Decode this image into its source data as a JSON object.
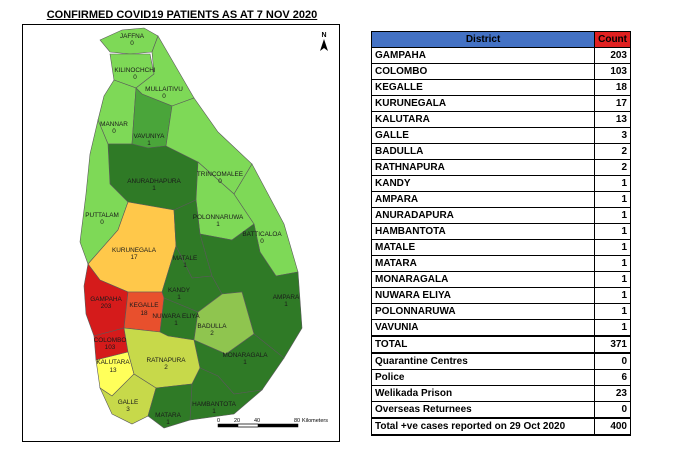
{
  "title": "CONFIRMED COVID19 PATIENTS AS AT 7 NOV 2020",
  "north_arrow": "N",
  "scale": {
    "ticks": [
      "0",
      "10",
      "20",
      "40",
      "60",
      "80"
    ],
    "unit": "Kilometers"
  },
  "colors": {
    "ocean": "#ffffff",
    "zero": "#7ed957",
    "one_to_three": "#4aa53a",
    "low": "#8fc54f",
    "medium": "#c7d94a",
    "kalutara": "#ffff5a",
    "kurunegala": "#ffc84a",
    "kegalle": "#e8502d",
    "high": "#d51b1b",
    "dark": "#2f7a26"
  },
  "districts": [
    {
      "name": "JAFFNA",
      "count": "0"
    },
    {
      "name": "KILINOCHCHI",
      "count": "0"
    },
    {
      "name": "MULLAITIVU",
      "count": "0"
    },
    {
      "name": "MANNAR",
      "count": "0"
    },
    {
      "name": "VAVUNIYA",
      "count": "1"
    },
    {
      "name": "ANURADHAPURA",
      "count": "1"
    },
    {
      "name": "TRINCOMALEE",
      "count": "0"
    },
    {
      "name": "PUTTALAM",
      "count": "0"
    },
    {
      "name": "POLONNARUWA",
      "count": "1"
    },
    {
      "name": "BATTICALOA",
      "count": "0"
    },
    {
      "name": "KURUNEGALA",
      "count": "17"
    },
    {
      "name": "MATALE",
      "count": "1"
    },
    {
      "name": "KANDY",
      "count": "1"
    },
    {
      "name": "AMPARA",
      "count": "1"
    },
    {
      "name": "GAMPAHA",
      "count": "203"
    },
    {
      "name": "KEGALLE",
      "count": "18"
    },
    {
      "name": "NUWARA ELIYA",
      "count": "1"
    },
    {
      "name": "BADULLA",
      "count": "2"
    },
    {
      "name": "COLOMBO",
      "count": "103"
    },
    {
      "name": "MONARAGALA",
      "count": "1"
    },
    {
      "name": "KALUTARA",
      "count": "13"
    },
    {
      "name": "RATNAPURA",
      "count": "2"
    },
    {
      "name": "GALLE",
      "count": "3"
    },
    {
      "name": "HAMBANTOTA",
      "count": "1"
    },
    {
      "name": "MATARA",
      "count": "1"
    }
  ],
  "table": {
    "header": {
      "district": "District",
      "count": "Count"
    },
    "rows": [
      {
        "district": "GAMPAHA",
        "count": "203"
      },
      {
        "district": "COLOMBO",
        "count": "103"
      },
      {
        "district": "KEGALLE",
        "count": "18"
      },
      {
        "district": "KURUNEGALA",
        "count": "17"
      },
      {
        "district": "KALUTARA",
        "count": "13"
      },
      {
        "district": "GALLE",
        "count": "3"
      },
      {
        "district": "BADULLA",
        "count": "2"
      },
      {
        "district": "RATHNAPURA",
        "count": "2"
      },
      {
        "district": "KANDY",
        "count": "1"
      },
      {
        "district": "AMPARA",
        "count": "1"
      },
      {
        "district": "ANURADAPURA",
        "count": "1"
      },
      {
        "district": "HAMBANTOTA",
        "count": "1"
      },
      {
        "district": "MATALE",
        "count": "1"
      },
      {
        "district": "MATARA",
        "count": "1"
      },
      {
        "district": "MONARAGALA",
        "count": "1"
      },
      {
        "district": "NUWARA ELIYA",
        "count": "1"
      },
      {
        "district": "POLONNARUWA",
        "count": "1"
      },
      {
        "district": "VAVUNIA",
        "count": "1"
      }
    ],
    "total": {
      "label": "TOTAL",
      "count": "371"
    },
    "extra": [
      {
        "label": "Quarantine Centres",
        "count": "0"
      },
      {
        "label": "Police",
        "count": "6"
      },
      {
        "label": "Welikada Prison",
        "count": "23"
      },
      {
        "label": "Overseas Returnees",
        "count": "0"
      }
    ],
    "grand_total": {
      "label": "Total +ve cases reported on 29 Oct 2020",
      "count": "400"
    }
  }
}
